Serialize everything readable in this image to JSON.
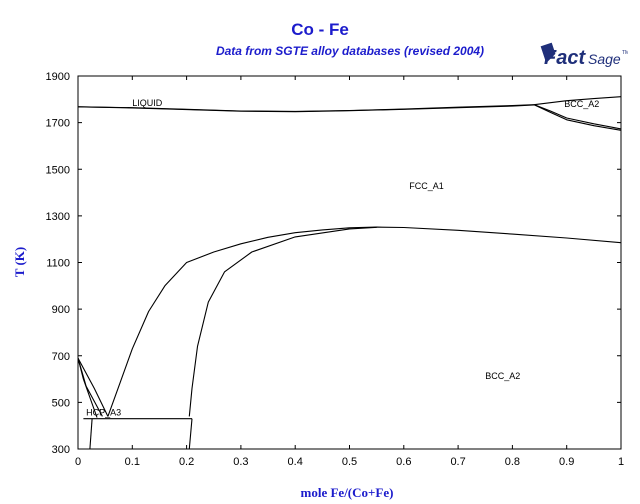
{
  "title": "Co - Fe",
  "subtitle": "Data from SGTE alloy databases (revised 2004)",
  "logo": {
    "text_main": "Fact",
    "text_sub": "Sage",
    "mark": "TM"
  },
  "chart_data": {
    "type": "line",
    "xlabel": "mole Fe/(Co+Fe)",
    "ylabel": "T (K)",
    "xlim": [
      0,
      1
    ],
    "ylim": [
      300,
      1900
    ],
    "xticks": [
      "0",
      "0.1",
      "0.2",
      "0.3",
      "0.4",
      "0.5",
      "0.6",
      "0.7",
      "0.8",
      "0.9",
      "1"
    ],
    "yticks": [
      "300",
      "500",
      "700",
      "900",
      "1100",
      "1300",
      "1500",
      "1700",
      "1900"
    ],
    "phase_labels": [
      {
        "text": "LIQUID",
        "x": 0.1,
        "y": 1772
      },
      {
        "text": "FCC_A1",
        "x": 0.61,
        "y": 1416
      },
      {
        "text": "BCC_A2",
        "x": 0.96,
        "y": 1766
      },
      {
        "text": "BCC_A2",
        "x": 0.75,
        "y": 600
      },
      {
        "text": "HCP_A3",
        "x": 0.015,
        "y": 443
      }
    ],
    "series": [
      {
        "values": [
          [
            0,
            1768
          ],
          [
            0.1,
            1764
          ],
          [
            0.2,
            1757
          ],
          [
            0.3,
            1750
          ],
          [
            0.4,
            1748
          ],
          [
            0.5,
            1752
          ],
          [
            0.6,
            1758
          ],
          [
            0.7,
            1766
          ],
          [
            0.8,
            1773
          ],
          [
            0.84,
            1777
          ]
        ]
      },
      {
        "values": [
          [
            0,
            1768
          ],
          [
            0.1,
            1763
          ],
          [
            0.2,
            1756
          ],
          [
            0.3,
            1749
          ],
          [
            0.4,
            1747
          ],
          [
            0.5,
            1751
          ],
          [
            0.6,
            1757
          ],
          [
            0.7,
            1764
          ],
          [
            0.8,
            1771
          ],
          [
            0.84,
            1776
          ]
        ]
      },
      {
        "values": [
          [
            0.84,
            1777
          ],
          [
            0.9,
            1794
          ],
          [
            0.95,
            1803
          ],
          [
            1.0,
            1811
          ]
        ]
      },
      {
        "values": [
          [
            0.84,
            1777
          ],
          [
            0.87,
            1744
          ],
          [
            0.9,
            1712
          ],
          [
            0.95,
            1687
          ],
          [
            1.0,
            1667
          ]
        ]
      },
      {
        "values": [
          [
            0.84,
            1777
          ],
          [
            0.87,
            1750
          ],
          [
            0.9,
            1720
          ],
          [
            0.95,
            1695
          ],
          [
            1.0,
            1673
          ]
        ]
      },
      {
        "values": [
          [
            0.055,
            440
          ],
          [
            0.08,
            600
          ],
          [
            0.1,
            730
          ],
          [
            0.13,
            890
          ],
          [
            0.16,
            1000
          ],
          [
            0.2,
            1100
          ],
          [
            0.25,
            1145
          ],
          [
            0.3,
            1180
          ],
          [
            0.35,
            1208
          ],
          [
            0.4,
            1228
          ],
          [
            0.45,
            1240
          ],
          [
            0.5,
            1249
          ],
          [
            0.55,
            1252
          ],
          [
            0.6,
            1250
          ],
          [
            0.7,
            1238
          ],
          [
            0.8,
            1222
          ],
          [
            0.9,
            1205
          ],
          [
            1.0,
            1185
          ]
        ]
      },
      {
        "values": [
          [
            0.205,
            440
          ],
          [
            0.21,
            560
          ],
          [
            0.22,
            740
          ],
          [
            0.24,
            930
          ],
          [
            0.27,
            1060
          ],
          [
            0.32,
            1145
          ],
          [
            0.4,
            1210
          ],
          [
            0.5,
            1244
          ],
          [
            0.55,
            1251
          ]
        ]
      },
      {
        "values": [
          [
            0.022,
            300
          ],
          [
            0.026,
            430
          ]
        ]
      },
      {
        "values": [
          [
            0.205,
            300
          ],
          [
            0.21,
            430
          ]
        ]
      },
      {
        "values": [
          [
            0.01,
            430
          ],
          [
            0.21,
            430
          ]
        ]
      },
      {
        "values": [
          [
            0,
            690
          ],
          [
            0.01,
            600
          ],
          [
            0.035,
            435
          ]
        ]
      },
      {
        "values": [
          [
            0,
            690
          ],
          [
            0.03,
            560
          ],
          [
            0.055,
            440
          ]
        ]
      },
      {
        "values": [
          [
            0,
            690
          ],
          [
            0.015,
            570
          ],
          [
            0.045,
            440
          ]
        ]
      }
    ]
  }
}
